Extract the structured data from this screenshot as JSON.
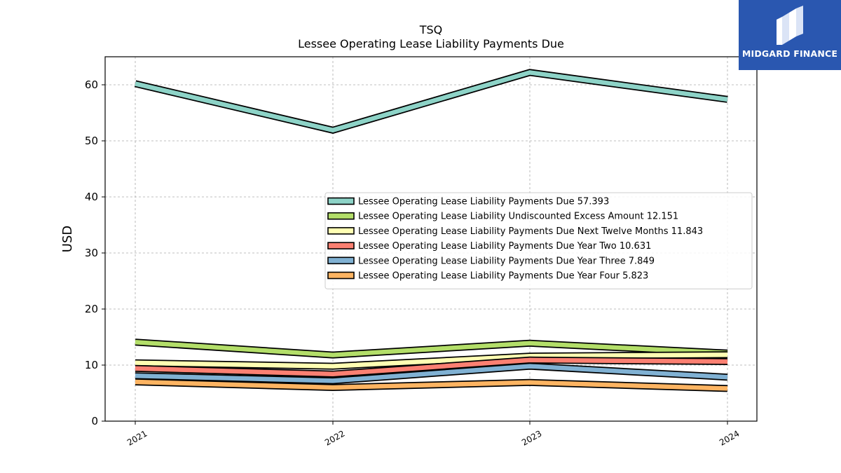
{
  "brand": {
    "name": "MIDGARD FINANCE",
    "logo_icon": "midgard-finance-m-logo-icon",
    "background": "#2a57b0"
  },
  "chart_data": {
    "type": "line",
    "title": "TSQ",
    "subtitle": "Lessee Operating Lease Liability Payments Due",
    "xlabel": "",
    "ylabel": "USD",
    "x": [
      "2021",
      "2022",
      "2023",
      "2024"
    ],
    "ylim": [
      0,
      65
    ],
    "yticks": [
      0,
      10,
      20,
      30,
      40,
      50,
      60
    ],
    "grid": true,
    "legend_position": "center-right",
    "series": [
      {
        "name": "Lessee Operating Lease Liability Payments Due",
        "legend_value": "57.393",
        "color": "#8dd3c7",
        "values": [
          60.2,
          51.9,
          62.2,
          57.393
        ]
      },
      {
        "name": "Lessee Operating Lease Liability Undiscounted Excess Amount",
        "legend_value": "12.151",
        "color": "#b3de69",
        "values": [
          14.1,
          11.8,
          13.9,
          12.151
        ]
      },
      {
        "name": "Lessee Operating Lease Liability Payments Due Next Twelve Months",
        "legend_value": "11.843",
        "color": "#ffffb3",
        "values": [
          10.4,
          9.8,
          11.6,
          11.843
        ]
      },
      {
        "name": "Lessee Operating Lease Liability Payments Due Year Two",
        "legend_value": "10.631",
        "color": "#fb8072",
        "values": [
          9.4,
          8.4,
          10.9,
          10.631
        ]
      },
      {
        "name": "Lessee Operating Lease Liability Payments Due Year Three",
        "legend_value": "7.849",
        "color": "#80b1d3",
        "values": [
          8.1,
          7.2,
          9.8,
          7.849
        ]
      },
      {
        "name": "Lessee Operating Lease Liability Payments Due Year Four",
        "legend_value": "5.823",
        "color": "#fdb462",
        "values": [
          7.0,
          6.0,
          6.9,
          5.823
        ]
      }
    ]
  }
}
